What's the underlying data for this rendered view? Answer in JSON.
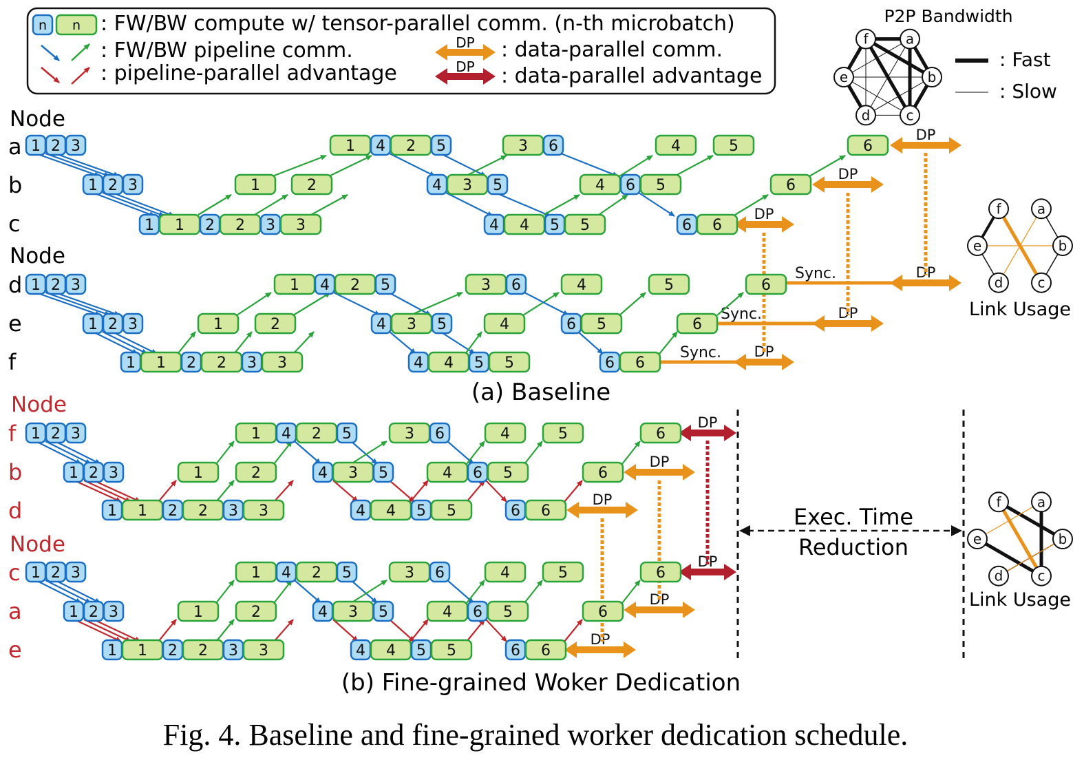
{
  "legend": {
    "box_sample_blue": "n",
    "box_sample_green": "n",
    "compute_text": ": FW/BW compute w/ tensor-parallel comm. (n-th microbatch)",
    "pipeline_comm_text": ": FW/BW pipeline comm.",
    "pp_advantage_text": ": pipeline-parallel advantage",
    "dp_label": "DP",
    "dp_comm_text": ": data-parallel comm.",
    "dp_advantage_text": ": data-parallel advantage"
  },
  "p2p": {
    "title": "P2P Bandwidth",
    "nodes": [
      "a",
      "b",
      "c",
      "d",
      "e",
      "f"
    ],
    "fast_label": ": Fast",
    "slow_label": ": Slow"
  },
  "baseline": {
    "node_label": "Node",
    "groups": [
      [
        "a",
        "b",
        "c"
      ],
      [
        "d",
        "e",
        "f"
      ]
    ],
    "sync_label": "Sync.",
    "dp_label": "DP",
    "caption": "(a) Baseline",
    "link_usage_label": "Link Usage"
  },
  "dedication": {
    "node_label": "Node",
    "groups": [
      [
        "f",
        "b",
        "d"
      ],
      [
        "c",
        "a",
        "e"
      ]
    ],
    "dp_label": "DP",
    "exec_time_label_1": "Exec. Time",
    "exec_time_label_2": "Reduction",
    "caption": "(b) Fine-grained Woker Dedication",
    "link_usage_label": "Link Usage"
  },
  "figure_caption": "Fig. 4.  Baseline and fine-grained worker dedication schedule.",
  "colors": {
    "blue_fill": "#aedcf5",
    "blue_stroke": "#1a6fc4",
    "green_fill": "#d4e8a0",
    "green_stroke": "#29a33a",
    "orange": "#e8921c",
    "dark_red": "#b21f2d",
    "red_text": "#c0282e",
    "arrow_blue": "#1a6fc4",
    "arrow_green": "#29a33a",
    "arrow_red": "#c0282e"
  }
}
